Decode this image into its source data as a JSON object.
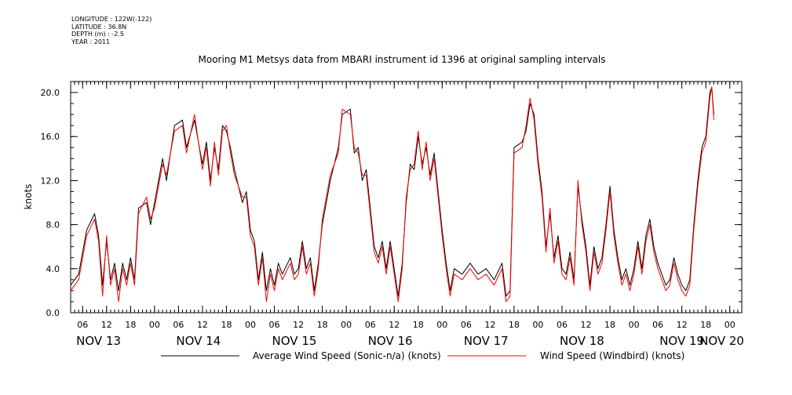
{
  "meta": {
    "longitude": "LONGITUDE : 122W(-122)",
    "latitude": "LATITUDE : 36.8N",
    "depth": "DEPTH (m) : -2.5",
    "year": "YEAR : 2011"
  },
  "chart_data": {
    "type": "line",
    "title": "Mooring M1 Metsys data from MBARI instrument id 1396 at original sampling intervals",
    "ylabel": "knots",
    "ylim": [
      0,
      21
    ],
    "yticks": [
      "0.0",
      "4.0",
      "8.0",
      "12.0",
      "16.0",
      "20.0"
    ],
    "ytick_values": [
      0,
      4,
      8,
      12,
      16,
      20
    ],
    "x_unit": "hours since NOV 13 00:00",
    "xlim": [
      3,
      171
    ],
    "xticks_hours": [
      {
        "h": 6,
        "label": "06"
      },
      {
        "h": 12,
        "label": "12"
      },
      {
        "h": 18,
        "label": "18"
      },
      {
        "h": 24,
        "label": "00"
      },
      {
        "h": 30,
        "label": "06"
      },
      {
        "h": 36,
        "label": "12"
      },
      {
        "h": 42,
        "label": "18"
      },
      {
        "h": 48,
        "label": "00"
      },
      {
        "h": 54,
        "label": "06"
      },
      {
        "h": 60,
        "label": "12"
      },
      {
        "h": 66,
        "label": "18"
      },
      {
        "h": 72,
        "label": "00"
      },
      {
        "h": 78,
        "label": "06"
      },
      {
        "h": 84,
        "label": "12"
      },
      {
        "h": 90,
        "label": "18"
      },
      {
        "h": 96,
        "label": "00"
      },
      {
        "h": 102,
        "label": "06"
      },
      {
        "h": 108,
        "label": "12"
      },
      {
        "h": 114,
        "label": "18"
      },
      {
        "h": 120,
        "label": "00"
      },
      {
        "h": 126,
        "label": "06"
      },
      {
        "h": 132,
        "label": "12"
      },
      {
        "h": 138,
        "label": "18"
      },
      {
        "h": 144,
        "label": "00"
      },
      {
        "h": 150,
        "label": "06"
      },
      {
        "h": 156,
        "label": "12"
      },
      {
        "h": 162,
        "label": "18"
      },
      {
        "h": 168,
        "label": "00"
      }
    ],
    "day_labels": [
      {
        "h": 10,
        "label": "NOV 13"
      },
      {
        "h": 35,
        "label": "NOV 14"
      },
      {
        "h": 59,
        "label": "NOV 15"
      },
      {
        "h": 83,
        "label": "NOV 16"
      },
      {
        "h": 107,
        "label": "NOV 17"
      },
      {
        "h": 131,
        "label": "NOV 18"
      },
      {
        "h": 156,
        "label": "NOV 19"
      },
      {
        "h": 166,
        "label": "NOV 20"
      }
    ],
    "legend": {
      "placement": "bottom",
      "items": [
        {
          "name": "Average Wind Speed (Sonic-n/a) (knots)",
          "color": "#000000"
        },
        {
          "name": "Wind Speed (Windbird) (knots)",
          "color": "#ff0000"
        }
      ]
    },
    "series": [
      {
        "name": "Average Wind Speed (Sonic-n/a) (knots)",
        "color": "#000000",
        "points": [
          [
            3,
            2.5
          ],
          [
            5,
            3.5
          ],
          [
            7,
            7.5
          ],
          [
            9,
            9.0
          ],
          [
            10,
            7.0
          ],
          [
            11,
            2.5
          ],
          [
            12,
            6.5
          ],
          [
            13,
            3.0
          ],
          [
            14,
            4.5
          ],
          [
            15,
            2.0
          ],
          [
            16,
            4.5
          ],
          [
            17,
            3.0
          ],
          [
            18,
            5.0
          ],
          [
            19,
            3.0
          ],
          [
            20,
            9.5
          ],
          [
            22,
            10.0
          ],
          [
            23,
            8.0
          ],
          [
            24,
            10.0
          ],
          [
            26,
            14.0
          ],
          [
            27,
            12.0
          ],
          [
            29,
            17.0
          ],
          [
            31,
            17.5
          ],
          [
            32,
            15.0
          ],
          [
            34,
            17.5
          ],
          [
            36,
            13.5
          ],
          [
            37,
            15.5
          ],
          [
            38,
            12.0
          ],
          [
            39,
            15.0
          ],
          [
            40,
            13.0
          ],
          [
            41,
            17.0
          ],
          [
            42,
            16.5
          ],
          [
            43,
            15.0
          ],
          [
            44,
            13.0
          ],
          [
            46,
            10.0
          ],
          [
            47,
            11.0
          ],
          [
            48,
            7.5
          ],
          [
            49,
            6.5
          ],
          [
            50,
            3.0
          ],
          [
            51,
            5.5
          ],
          [
            52,
            2.0
          ],
          [
            53,
            4.0
          ],
          [
            54,
            2.5
          ],
          [
            55,
            4.5
          ],
          [
            56,
            3.5
          ],
          [
            58,
            5.0
          ],
          [
            59,
            3.5
          ],
          [
            60,
            4.0
          ],
          [
            61,
            6.5
          ],
          [
            62,
            4.0
          ],
          [
            63,
            5.0
          ],
          [
            64,
            2.0
          ],
          [
            65,
            4.5
          ],
          [
            66,
            8.0
          ],
          [
            68,
            12.0
          ],
          [
            70,
            15.0
          ],
          [
            71,
            18.0
          ],
          [
            73,
            18.5
          ],
          [
            74,
            14.5
          ],
          [
            75,
            15.0
          ],
          [
            76,
            12.0
          ],
          [
            77,
            13.0
          ],
          [
            78,
            9.5
          ],
          [
            79,
            6.0
          ],
          [
            80,
            5.0
          ],
          [
            81,
            6.5
          ],
          [
            82,
            4.0
          ],
          [
            83,
            6.5
          ],
          [
            84,
            4.0
          ],
          [
            85,
            1.5
          ],
          [
            86,
            4.5
          ],
          [
            87,
            10.0
          ],
          [
            88,
            13.5
          ],
          [
            89,
            13.0
          ],
          [
            90,
            16.0
          ],
          [
            91,
            13.5
          ],
          [
            92,
            15.0
          ],
          [
            93,
            12.5
          ],
          [
            94,
            14.5
          ],
          [
            95,
            11.0
          ],
          [
            96,
            7.5
          ],
          [
            97,
            4.5
          ],
          [
            98,
            2.0
          ],
          [
            99,
            4.0
          ],
          [
            101,
            3.5
          ],
          [
            103,
            4.5
          ],
          [
            105,
            3.5
          ],
          [
            107,
            4.0
          ],
          [
            109,
            3.0
          ],
          [
            111,
            4.5
          ],
          [
            112,
            1.5
          ],
          [
            113,
            2.0
          ],
          [
            114,
            15.0
          ],
          [
            116,
            15.5
          ],
          [
            117,
            16.5
          ],
          [
            118,
            19.0
          ],
          [
            119,
            18.0
          ],
          [
            120,
            14.0
          ],
          [
            121,
            11.0
          ],
          [
            122,
            6.0
          ],
          [
            123,
            9.0
          ],
          [
            124,
            5.0
          ],
          [
            125,
            7.0
          ],
          [
            126,
            4.0
          ],
          [
            127,
            3.5
          ],
          [
            128,
            5.5
          ],
          [
            129,
            3.0
          ],
          [
            130,
            11.5
          ],
          [
            131,
            8.5
          ],
          [
            132,
            6.0
          ],
          [
            133,
            2.5
          ],
          [
            134,
            6.0
          ],
          [
            135,
            4.0
          ],
          [
            136,
            5.0
          ],
          [
            137,
            8.0
          ],
          [
            138,
            11.5
          ],
          [
            139,
            7.5
          ],
          [
            140,
            5.0
          ],
          [
            141,
            3.0
          ],
          [
            142,
            4.0
          ],
          [
            143,
            2.5
          ],
          [
            144,
            4.0
          ],
          [
            145,
            6.5
          ],
          [
            146,
            4.0
          ],
          [
            147,
            7.0
          ],
          [
            148,
            8.5
          ],
          [
            149,
            6.0
          ],
          [
            150,
            4.5
          ],
          [
            151,
            3.5
          ],
          [
            152,
            2.5
          ],
          [
            153,
            3.0
          ],
          [
            154,
            5.0
          ],
          [
            155,
            3.5
          ],
          [
            156,
            2.5
          ],
          [
            157,
            2.0
          ],
          [
            158,
            3.0
          ],
          [
            159,
            8.0
          ],
          [
            160,
            12.0
          ],
          [
            161,
            15.0
          ],
          [
            162,
            16.0
          ],
          [
            163,
            20.0
          ],
          [
            163.5,
            20.5
          ],
          [
            164,
            18.0
          ]
        ]
      },
      {
        "name": "Wind Speed (Windbird) (knots)",
        "color": "#ff0000",
        "points": [
          [
            3,
            2.0
          ],
          [
            5,
            3.0
          ],
          [
            7,
            7.0
          ],
          [
            9,
            8.5
          ],
          [
            10,
            6.5
          ],
          [
            11,
            1.5
          ],
          [
            12,
            7.0
          ],
          [
            13,
            2.5
          ],
          [
            14,
            4.0
          ],
          [
            15,
            1.0
          ],
          [
            16,
            4.0
          ],
          [
            17,
            2.5
          ],
          [
            18,
            4.5
          ],
          [
            19,
            2.5
          ],
          [
            20,
            9.0
          ],
          [
            22,
            10.5
          ],
          [
            23,
            8.5
          ],
          [
            24,
            9.5
          ],
          [
            26,
            13.5
          ],
          [
            27,
            12.5
          ],
          [
            29,
            16.5
          ],
          [
            31,
            17.0
          ],
          [
            32,
            14.5
          ],
          [
            34,
            18.0
          ],
          [
            36,
            13.0
          ],
          [
            37,
            15.0
          ],
          [
            38,
            11.5
          ],
          [
            39,
            15.5
          ],
          [
            40,
            12.5
          ],
          [
            41,
            16.5
          ],
          [
            42,
            17.0
          ],
          [
            43,
            14.5
          ],
          [
            44,
            12.5
          ],
          [
            46,
            10.5
          ],
          [
            47,
            10.5
          ],
          [
            48,
            7.0
          ],
          [
            49,
            6.0
          ],
          [
            50,
            2.5
          ],
          [
            51,
            5.0
          ],
          [
            52,
            1.0
          ],
          [
            53,
            3.5
          ],
          [
            54,
            2.0
          ],
          [
            55,
            4.0
          ],
          [
            56,
            3.0
          ],
          [
            58,
            4.5
          ],
          [
            59,
            3.0
          ],
          [
            60,
            3.5
          ],
          [
            61,
            6.0
          ],
          [
            62,
            3.5
          ],
          [
            63,
            4.5
          ],
          [
            64,
            1.5
          ],
          [
            65,
            4.0
          ],
          [
            66,
            8.5
          ],
          [
            68,
            12.5
          ],
          [
            70,
            14.5
          ],
          [
            71,
            18.5
          ],
          [
            73,
            18.0
          ],
          [
            74,
            15.0
          ],
          [
            75,
            14.5
          ],
          [
            76,
            12.5
          ],
          [
            77,
            12.5
          ],
          [
            78,
            9.0
          ],
          [
            79,
            5.5
          ],
          [
            80,
            4.5
          ],
          [
            81,
            6.0
          ],
          [
            82,
            3.5
          ],
          [
            83,
            6.0
          ],
          [
            84,
            3.5
          ],
          [
            85,
            1.0
          ],
          [
            86,
            4.0
          ],
          [
            87,
            10.5
          ],
          [
            88,
            13.0
          ],
          [
            89,
            13.5
          ],
          [
            90,
            16.5
          ],
          [
            91,
            13.0
          ],
          [
            92,
            15.5
          ],
          [
            93,
            12.0
          ],
          [
            94,
            14.0
          ],
          [
            95,
            10.5
          ],
          [
            96,
            7.0
          ],
          [
            97,
            4.0
          ],
          [
            98,
            1.5
          ],
          [
            99,
            3.5
          ],
          [
            101,
            3.0
          ],
          [
            103,
            4.0
          ],
          [
            105,
            3.0
          ],
          [
            107,
            3.5
          ],
          [
            109,
            2.5
          ],
          [
            111,
            4.0
          ],
          [
            112,
            1.0
          ],
          [
            113,
            1.5
          ],
          [
            114,
            14.5
          ],
          [
            116,
            15.0
          ],
          [
            117,
            17.0
          ],
          [
            118,
            19.5
          ],
          [
            119,
            17.5
          ],
          [
            120,
            13.5
          ],
          [
            121,
            10.5
          ],
          [
            122,
            5.5
          ],
          [
            123,
            9.5
          ],
          [
            124,
            4.5
          ],
          [
            125,
            6.5
          ],
          [
            126,
            3.5
          ],
          [
            127,
            3.0
          ],
          [
            128,
            5.0
          ],
          [
            129,
            2.5
          ],
          [
            130,
            12.0
          ],
          [
            131,
            8.0
          ],
          [
            132,
            5.5
          ],
          [
            133,
            2.0
          ],
          [
            134,
            5.5
          ],
          [
            135,
            3.5
          ],
          [
            136,
            4.5
          ],
          [
            137,
            7.5
          ],
          [
            138,
            11.0
          ],
          [
            139,
            7.0
          ],
          [
            140,
            4.5
          ],
          [
            141,
            2.5
          ],
          [
            142,
            3.5
          ],
          [
            143,
            2.0
          ],
          [
            144,
            3.5
          ],
          [
            145,
            6.0
          ],
          [
            146,
            3.5
          ],
          [
            147,
            6.5
          ],
          [
            148,
            8.0
          ],
          [
            149,
            5.5
          ],
          [
            150,
            4.0
          ],
          [
            151,
            3.0
          ],
          [
            152,
            2.0
          ],
          [
            153,
            2.5
          ],
          [
            154,
            4.5
          ],
          [
            155,
            3.0
          ],
          [
            156,
            2.0
          ],
          [
            157,
            1.5
          ],
          [
            158,
            2.5
          ],
          [
            159,
            7.5
          ],
          [
            160,
            11.5
          ],
          [
            161,
            14.5
          ],
          [
            162,
            15.5
          ],
          [
            163,
            19.5
          ],
          [
            163.5,
            20.5
          ],
          [
            164,
            17.5
          ]
        ]
      }
    ]
  }
}
